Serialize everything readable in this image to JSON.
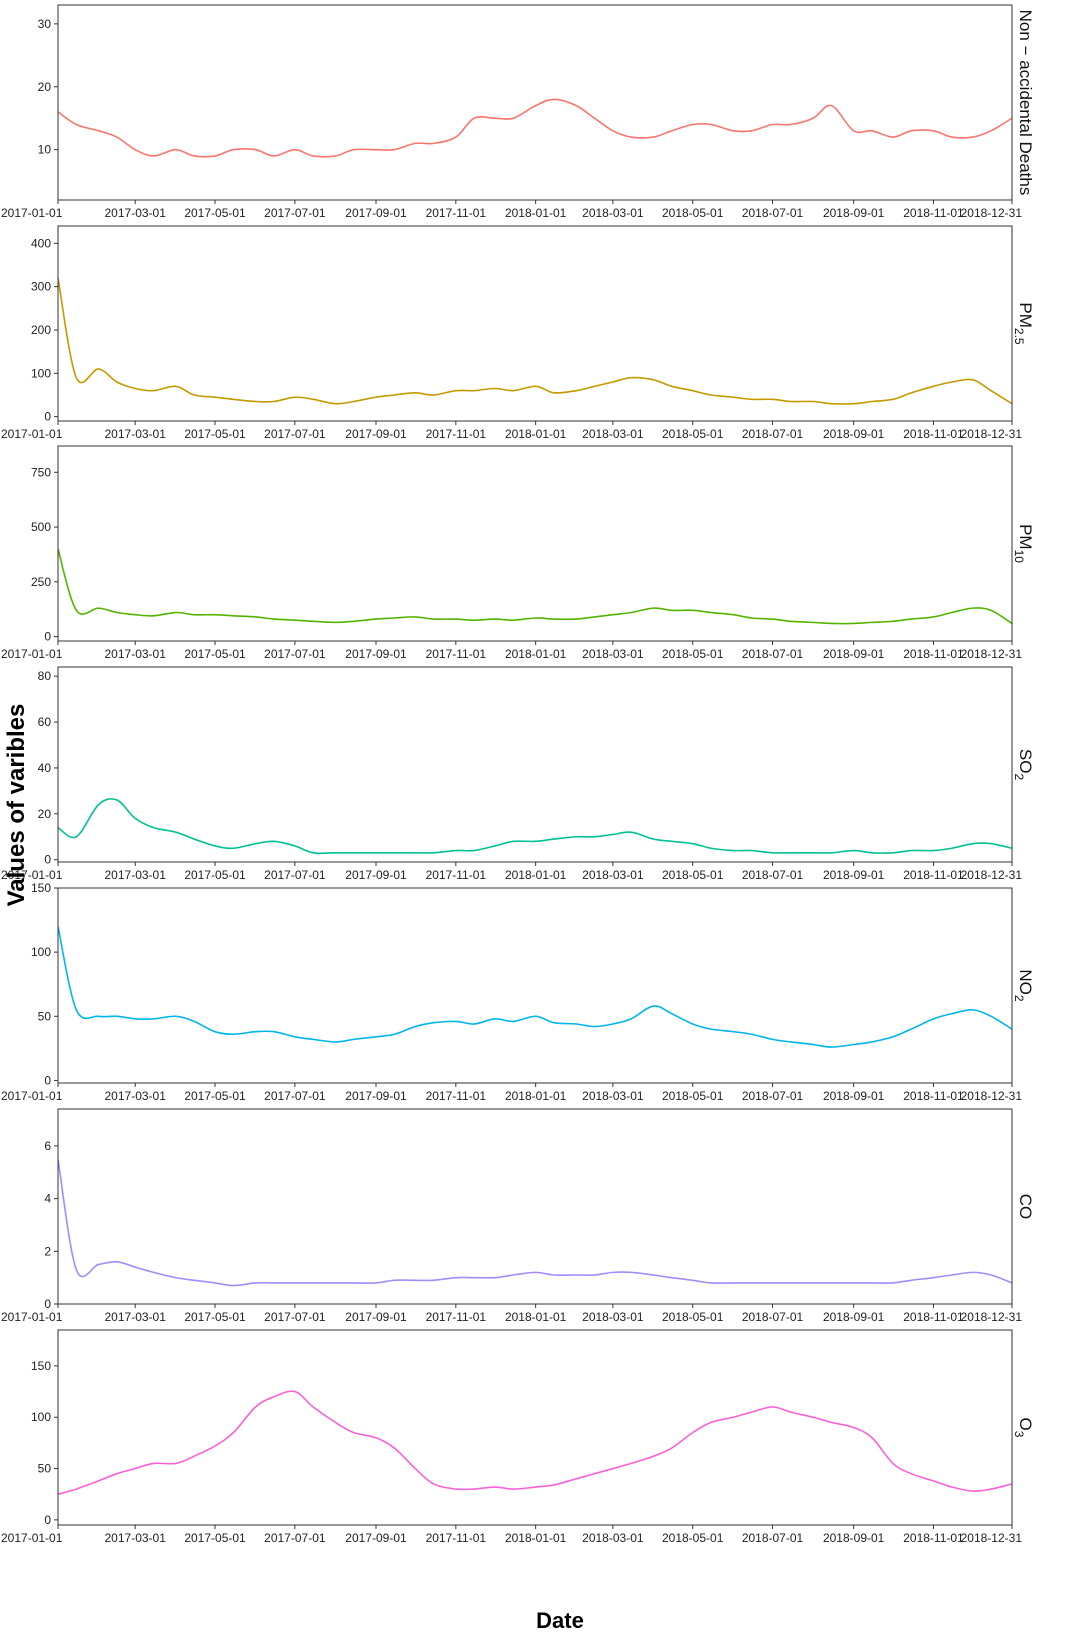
{
  "chart_data": {
    "type": "line",
    "xlabel": "Date",
    "ylabel": "Values of varibles",
    "xlim": [
      "2017-01-01",
      "2018-12-31"
    ],
    "x_ticks": [
      "2017-01-01",
      "2017-03-01",
      "2017-05-01",
      "2017-07-01",
      "2017-09-01",
      "2017-11-01",
      "2018-01-01",
      "2018-03-01",
      "2018-05-01",
      "2018-07-01",
      "2018-09-01",
      "2018-11-01",
      "2018-12-31"
    ],
    "grid": false,
    "legend": "none",
    "panels": [
      {
        "strip_label": "Non − accidental Deaths",
        "color": "#F8766D",
        "ylim": [
          2,
          33
        ],
        "y_ticks": [
          10,
          20,
          30
        ],
        "series": {
          "x": [
            "2017-01-01",
            "2017-01-15",
            "2017-02-01",
            "2017-02-15",
            "2017-03-01",
            "2017-03-15",
            "2017-04-01",
            "2017-04-15",
            "2017-05-01",
            "2017-05-15",
            "2017-06-01",
            "2017-06-15",
            "2017-07-01",
            "2017-07-15",
            "2017-08-01",
            "2017-08-15",
            "2017-09-01",
            "2017-09-15",
            "2017-10-01",
            "2017-10-15",
            "2017-11-01",
            "2017-11-15",
            "2017-12-01",
            "2017-12-15",
            "2018-01-01",
            "2018-01-15",
            "2018-02-01",
            "2018-02-15",
            "2018-03-01",
            "2018-03-15",
            "2018-04-01",
            "2018-04-15",
            "2018-05-01",
            "2018-05-15",
            "2018-06-01",
            "2018-06-15",
            "2018-07-01",
            "2018-07-15",
            "2018-08-01",
            "2018-08-15",
            "2018-09-01",
            "2018-09-15",
            "2018-10-01",
            "2018-10-15",
            "2018-11-01",
            "2018-11-15",
            "2018-12-01",
            "2018-12-15",
            "2018-12-31"
          ],
          "values": [
            16,
            14,
            13,
            12,
            10,
            9,
            10,
            9,
            9,
            10,
            10,
            9,
            10,
            9,
            9,
            10,
            10,
            10,
            11,
            11,
            12,
            15,
            15,
            15,
            17,
            18,
            17,
            15,
            13,
            12,
            12,
            13,
            14,
            14,
            13,
            13,
            14,
            14,
            15,
            17,
            13,
            13,
            12,
            13,
            13,
            12,
            12,
            13,
            15
          ]
        }
      },
      {
        "strip_label": "PM2.5",
        "strip_base": "PM",
        "strip_sub": "2.5",
        "color": "#C49A00",
        "ylim": [
          -10,
          440
        ],
        "y_ticks": [
          0,
          100,
          200,
          300,
          400
        ],
        "series": {
          "x": [
            "2017-01-01",
            "2017-01-15",
            "2017-02-01",
            "2017-02-15",
            "2017-03-01",
            "2017-03-15",
            "2017-04-01",
            "2017-04-15",
            "2017-05-01",
            "2017-05-15",
            "2017-06-01",
            "2017-06-15",
            "2017-07-01",
            "2017-07-15",
            "2017-08-01",
            "2017-08-15",
            "2017-09-01",
            "2017-09-15",
            "2017-10-01",
            "2017-10-15",
            "2017-11-01",
            "2017-11-15",
            "2017-12-01",
            "2017-12-15",
            "2018-01-01",
            "2018-01-15",
            "2018-02-01",
            "2018-02-15",
            "2018-03-01",
            "2018-03-15",
            "2018-04-01",
            "2018-04-15",
            "2018-05-01",
            "2018-05-15",
            "2018-06-01",
            "2018-06-15",
            "2018-07-01",
            "2018-07-15",
            "2018-08-01",
            "2018-08-15",
            "2018-09-01",
            "2018-09-15",
            "2018-10-01",
            "2018-10-15",
            "2018-11-01",
            "2018-11-15",
            "2018-12-01",
            "2018-12-15",
            "2018-12-31"
          ],
          "values": [
            320,
            90,
            110,
            80,
            65,
            60,
            70,
            50,
            45,
            40,
            35,
            35,
            45,
            40,
            30,
            35,
            45,
            50,
            55,
            50,
            60,
            60,
            65,
            60,
            70,
            55,
            60,
            70,
            80,
            90,
            85,
            70,
            60,
            50,
            45,
            40,
            40,
            35,
            35,
            30,
            30,
            35,
            40,
            55,
            70,
            80,
            85,
            60,
            30
          ]
        }
      },
      {
        "strip_label": "PM10",
        "strip_base": "PM",
        "strip_sub": "10",
        "color": "#53B400",
        "ylim": [
          -20,
          870
        ],
        "y_ticks": [
          0,
          250,
          500,
          750
        ],
        "series": {
          "x": [
            "2017-01-01",
            "2017-01-15",
            "2017-02-01",
            "2017-02-15",
            "2017-03-01",
            "2017-03-15",
            "2017-04-01",
            "2017-04-15",
            "2017-05-01",
            "2017-05-15",
            "2017-06-01",
            "2017-06-15",
            "2017-07-01",
            "2017-07-15",
            "2017-08-01",
            "2017-08-15",
            "2017-09-01",
            "2017-09-15",
            "2017-10-01",
            "2017-10-15",
            "2017-11-01",
            "2017-11-15",
            "2017-12-01",
            "2017-12-15",
            "2018-01-01",
            "2018-01-15",
            "2018-02-01",
            "2018-02-15",
            "2018-03-01",
            "2018-03-15",
            "2018-04-01",
            "2018-04-15",
            "2018-05-01",
            "2018-05-15",
            "2018-06-01",
            "2018-06-15",
            "2018-07-01",
            "2018-07-15",
            "2018-08-01",
            "2018-08-15",
            "2018-09-01",
            "2018-09-15",
            "2018-10-01",
            "2018-10-15",
            "2018-11-01",
            "2018-11-15",
            "2018-12-01",
            "2018-12-15",
            "2018-12-31"
          ],
          "values": [
            400,
            120,
            130,
            110,
            100,
            95,
            110,
            100,
            100,
            95,
            90,
            80,
            75,
            70,
            65,
            70,
            80,
            85,
            90,
            80,
            80,
            75,
            80,
            75,
            85,
            80,
            80,
            90,
            100,
            110,
            130,
            120,
            120,
            110,
            100,
            85,
            80,
            70,
            65,
            60,
            60,
            65,
            70,
            80,
            90,
            110,
            130,
            120,
            60
          ]
        }
      },
      {
        "strip_label": "SO2",
        "strip_base": "SO",
        "strip_sub": "2",
        "color": "#00C094",
        "ylim": [
          -1,
          84
        ],
        "y_ticks": [
          0,
          20,
          40,
          60,
          80
        ],
        "series": {
          "x": [
            "2017-01-01",
            "2017-01-15",
            "2017-02-01",
            "2017-02-15",
            "2017-03-01",
            "2017-03-15",
            "2017-04-01",
            "2017-04-15",
            "2017-05-01",
            "2017-05-15",
            "2017-06-01",
            "2017-06-15",
            "2017-07-01",
            "2017-07-15",
            "2017-08-01",
            "2017-08-15",
            "2017-09-01",
            "2017-09-15",
            "2017-10-01",
            "2017-10-15",
            "2017-11-01",
            "2017-11-15",
            "2017-12-01",
            "2017-12-15",
            "2018-01-01",
            "2018-01-15",
            "2018-02-01",
            "2018-02-15",
            "2018-03-01",
            "2018-03-15",
            "2018-04-01",
            "2018-04-15",
            "2018-05-01",
            "2018-05-15",
            "2018-06-01",
            "2018-06-15",
            "2018-07-01",
            "2018-07-15",
            "2018-08-01",
            "2018-08-15",
            "2018-09-01",
            "2018-09-15",
            "2018-10-01",
            "2018-10-15",
            "2018-11-01",
            "2018-11-15",
            "2018-12-01",
            "2018-12-15",
            "2018-12-31"
          ],
          "values": [
            14,
            10,
            24,
            26,
            18,
            14,
            12,
            9,
            6,
            5,
            7,
            8,
            6,
            3,
            3,
            3,
            3,
            3,
            3,
            3,
            4,
            4,
            6,
            8,
            8,
            9,
            10,
            10,
            11,
            12,
            9,
            8,
            7,
            5,
            4,
            4,
            3,
            3,
            3,
            3,
            4,
            3,
            3,
            4,
            4,
            5,
            7,
            7,
            5
          ]
        }
      },
      {
        "strip_label": "NO2",
        "strip_base": "NO",
        "strip_sub": "2",
        "color": "#00B6EB",
        "ylim": [
          -2,
          150
        ],
        "y_ticks": [
          0,
          50,
          100,
          150
        ],
        "series": {
          "x": [
            "2017-01-01",
            "2017-01-15",
            "2017-02-01",
            "2017-02-15",
            "2017-03-01",
            "2017-03-15",
            "2017-04-01",
            "2017-04-15",
            "2017-05-01",
            "2017-05-15",
            "2017-06-01",
            "2017-06-15",
            "2017-07-01",
            "2017-07-15",
            "2017-08-01",
            "2017-08-15",
            "2017-09-01",
            "2017-09-15",
            "2017-10-01",
            "2017-10-15",
            "2017-11-01",
            "2017-11-15",
            "2017-12-01",
            "2017-12-15",
            "2018-01-01",
            "2018-01-15",
            "2018-02-01",
            "2018-02-15",
            "2018-03-01",
            "2018-03-15",
            "2018-04-01",
            "2018-04-15",
            "2018-05-01",
            "2018-05-15",
            "2018-06-01",
            "2018-06-15",
            "2018-07-01",
            "2018-07-15",
            "2018-08-01",
            "2018-08-15",
            "2018-09-01",
            "2018-09-15",
            "2018-10-01",
            "2018-10-15",
            "2018-11-01",
            "2018-11-15",
            "2018-12-01",
            "2018-12-15",
            "2018-12-31"
          ],
          "values": [
            120,
            55,
            50,
            50,
            48,
            48,
            50,
            46,
            38,
            36,
            38,
            38,
            34,
            32,
            30,
            32,
            34,
            36,
            42,
            45,
            46,
            44,
            48,
            46,
            50,
            45,
            44,
            42,
            44,
            48,
            58,
            52,
            44,
            40,
            38,
            36,
            32,
            30,
            28,
            26,
            28,
            30,
            34,
            40,
            48,
            52,
            55,
            50,
            40
          ]
        }
      },
      {
        "strip_label": "CO",
        "color": "#A58AFF",
        "ylim": [
          0,
          7.4
        ],
        "y_ticks": [
          0,
          2,
          4,
          6
        ],
        "series": {
          "x": [
            "2017-01-01",
            "2017-01-15",
            "2017-02-01",
            "2017-02-15",
            "2017-03-01",
            "2017-03-15",
            "2017-04-01",
            "2017-04-15",
            "2017-05-01",
            "2017-05-15",
            "2017-06-01",
            "2017-06-15",
            "2017-07-01",
            "2017-07-15",
            "2017-08-01",
            "2017-08-15",
            "2017-09-01",
            "2017-09-15",
            "2017-10-01",
            "2017-10-15",
            "2017-11-01",
            "2017-11-15",
            "2017-12-01",
            "2017-12-15",
            "2018-01-01",
            "2018-01-15",
            "2018-02-01",
            "2018-02-15",
            "2018-03-01",
            "2018-03-15",
            "2018-04-01",
            "2018-04-15",
            "2018-05-01",
            "2018-05-15",
            "2018-06-01",
            "2018-06-15",
            "2018-07-01",
            "2018-07-15",
            "2018-08-01",
            "2018-08-15",
            "2018-09-01",
            "2018-09-15",
            "2018-10-01",
            "2018-10-15",
            "2018-11-01",
            "2018-11-15",
            "2018-12-01",
            "2018-12-15",
            "2018-12-31"
          ],
          "values": [
            5.5,
            1.3,
            1.5,
            1.6,
            1.4,
            1.2,
            1.0,
            0.9,
            0.8,
            0.7,
            0.8,
            0.8,
            0.8,
            0.8,
            0.8,
            0.8,
            0.8,
            0.9,
            0.9,
            0.9,
            1.0,
            1.0,
            1.0,
            1.1,
            1.2,
            1.1,
            1.1,
            1.1,
            1.2,
            1.2,
            1.1,
            1.0,
            0.9,
            0.8,
            0.8,
            0.8,
            0.8,
            0.8,
            0.8,
            0.8,
            0.8,
            0.8,
            0.8,
            0.9,
            1.0,
            1.1,
            1.2,
            1.1,
            0.8
          ]
        }
      },
      {
        "strip_label": "O3",
        "strip_base": "O",
        "strip_sub": "3",
        "color": "#FB61D7",
        "ylim": [
          -5,
          185
        ],
        "y_ticks": [
          0,
          50,
          100,
          150
        ],
        "series": {
          "x": [
            "2017-01-01",
            "2017-01-15",
            "2017-02-01",
            "2017-02-15",
            "2017-03-01",
            "2017-03-15",
            "2017-04-01",
            "2017-04-15",
            "2017-05-01",
            "2017-05-15",
            "2017-06-01",
            "2017-06-15",
            "2017-07-01",
            "2017-07-15",
            "2017-08-01",
            "2017-08-15",
            "2017-09-01",
            "2017-09-15",
            "2017-10-01",
            "2017-10-15",
            "2017-11-01",
            "2017-11-15",
            "2017-12-01",
            "2017-12-15",
            "2018-01-01",
            "2018-01-15",
            "2018-02-01",
            "2018-02-15",
            "2018-03-01",
            "2018-03-15",
            "2018-04-01",
            "2018-04-15",
            "2018-05-01",
            "2018-05-15",
            "2018-06-01",
            "2018-06-15",
            "2018-07-01",
            "2018-07-15",
            "2018-08-01",
            "2018-08-15",
            "2018-09-01",
            "2018-09-15",
            "2018-10-01",
            "2018-10-15",
            "2018-11-01",
            "2018-11-15",
            "2018-12-01",
            "2018-12-15",
            "2018-12-31"
          ],
          "values": [
            25,
            30,
            38,
            45,
            50,
            55,
            55,
            62,
            72,
            85,
            110,
            120,
            125,
            110,
            95,
            85,
            80,
            70,
            50,
            35,
            30,
            30,
            32,
            30,
            32,
            34,
            40,
            45,
            50,
            55,
            62,
            70,
            85,
            95,
            100,
            105,
            110,
            105,
            100,
            95,
            90,
            80,
            55,
            45,
            38,
            32,
            28,
            30,
            35
          ]
        }
      }
    ]
  }
}
